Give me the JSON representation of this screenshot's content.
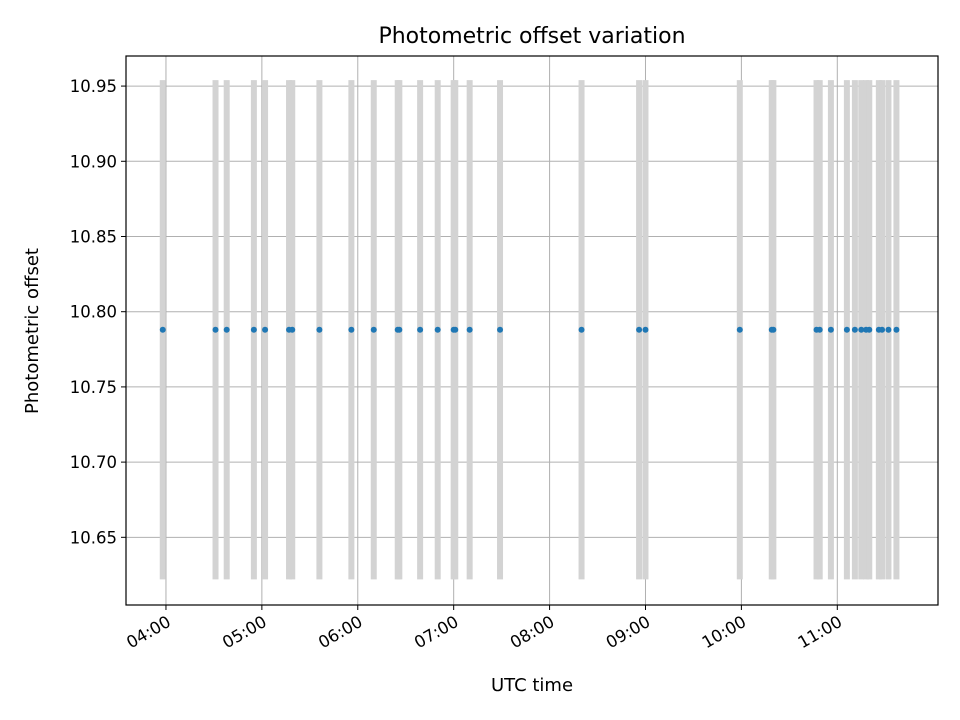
{
  "chart_data": {
    "type": "scatter",
    "title": "Photometric offset variation",
    "xlabel": "UTC time",
    "ylabel": "Photometric offset",
    "x_tick_labels": [
      "04:00",
      "05:00",
      "06:00",
      "07:00",
      "08:00",
      "09:00",
      "10:00",
      "11:00"
    ],
    "y_tick_labels": [
      "10.65",
      "10.70",
      "10.75",
      "10.80",
      "10.85",
      "10.90",
      "10.95"
    ],
    "y_ticks": [
      10.65,
      10.7,
      10.75,
      10.8,
      10.85,
      10.9,
      10.95
    ],
    "ylim": [
      10.605,
      10.97
    ],
    "xlim": [
      "03:35",
      "12:03"
    ],
    "grid": true,
    "marker_color": "#1f77b4",
    "errorbar_color": "#d3d3d3",
    "points": [
      {
        "time": "03:58",
        "y": 10.788,
        "err_low": 0.166,
        "err_high": 0.166
      },
      {
        "time": "04:31",
        "y": 10.788,
        "err_low": 0.166,
        "err_high": 0.166
      },
      {
        "time": "04:38",
        "y": 10.788,
        "err_low": 0.166,
        "err_high": 0.166
      },
      {
        "time": "04:55",
        "y": 10.788,
        "err_low": 0.166,
        "err_high": 0.166
      },
      {
        "time": "05:02",
        "y": 10.788,
        "err_low": 0.166,
        "err_high": 0.166
      },
      {
        "time": "05:17",
        "y": 10.788,
        "err_low": 0.166,
        "err_high": 0.166
      },
      {
        "time": "05:19",
        "y": 10.788,
        "err_low": 0.166,
        "err_high": 0.166
      },
      {
        "time": "05:36",
        "y": 10.788,
        "err_low": 0.166,
        "err_high": 0.166
      },
      {
        "time": "05:56",
        "y": 10.788,
        "err_low": 0.166,
        "err_high": 0.166
      },
      {
        "time": "06:10",
        "y": 10.788,
        "err_low": 0.166,
        "err_high": 0.166
      },
      {
        "time": "06:25",
        "y": 10.788,
        "err_low": 0.166,
        "err_high": 0.166
      },
      {
        "time": "06:26",
        "y": 10.788,
        "err_low": 0.166,
        "err_high": 0.166
      },
      {
        "time": "06:39",
        "y": 10.788,
        "err_low": 0.166,
        "err_high": 0.166
      },
      {
        "time": "06:50",
        "y": 10.788,
        "err_low": 0.166,
        "err_high": 0.166
      },
      {
        "time": "07:00",
        "y": 10.788,
        "err_low": 0.166,
        "err_high": 0.166
      },
      {
        "time": "07:01",
        "y": 10.788,
        "err_low": 0.166,
        "err_high": 0.166
      },
      {
        "time": "07:10",
        "y": 10.788,
        "err_low": 0.166,
        "err_high": 0.166
      },
      {
        "time": "07:29",
        "y": 10.788,
        "err_low": 0.166,
        "err_high": 0.166
      },
      {
        "time": "08:20",
        "y": 10.788,
        "err_low": 0.166,
        "err_high": 0.166
      },
      {
        "time": "08:56",
        "y": 10.788,
        "err_low": 0.166,
        "err_high": 0.166
      },
      {
        "time": "09:00",
        "y": 10.788,
        "err_low": 0.166,
        "err_high": 0.166
      },
      {
        "time": "09:59",
        "y": 10.788,
        "err_low": 0.166,
        "err_high": 0.166
      },
      {
        "time": "10:19",
        "y": 10.788,
        "err_low": 0.166,
        "err_high": 0.166
      },
      {
        "time": "10:20",
        "y": 10.788,
        "err_low": 0.166,
        "err_high": 0.166
      },
      {
        "time": "10:47",
        "y": 10.788,
        "err_low": 0.166,
        "err_high": 0.166
      },
      {
        "time": "10:49",
        "y": 10.788,
        "err_low": 0.166,
        "err_high": 0.166
      },
      {
        "time": "10:56",
        "y": 10.788,
        "err_low": 0.166,
        "err_high": 0.166
      },
      {
        "time": "11:06",
        "y": 10.788,
        "err_low": 0.166,
        "err_high": 0.166
      },
      {
        "time": "11:11",
        "y": 10.788,
        "err_low": 0.166,
        "err_high": 0.166
      },
      {
        "time": "11:15",
        "y": 10.788,
        "err_low": 0.166,
        "err_high": 0.166
      },
      {
        "time": "11:18",
        "y": 10.788,
        "err_low": 0.166,
        "err_high": 0.166
      },
      {
        "time": "11:20",
        "y": 10.788,
        "err_low": 0.166,
        "err_high": 0.166
      },
      {
        "time": "11:26",
        "y": 10.788,
        "err_low": 0.166,
        "err_high": 0.166
      },
      {
        "time": "11:28",
        "y": 10.788,
        "err_low": 0.166,
        "err_high": 0.166
      },
      {
        "time": "11:32",
        "y": 10.788,
        "err_low": 0.166,
        "err_high": 0.166
      },
      {
        "time": "11:37",
        "y": 10.788,
        "err_low": 0.166,
        "err_high": 0.166
      }
    ]
  }
}
